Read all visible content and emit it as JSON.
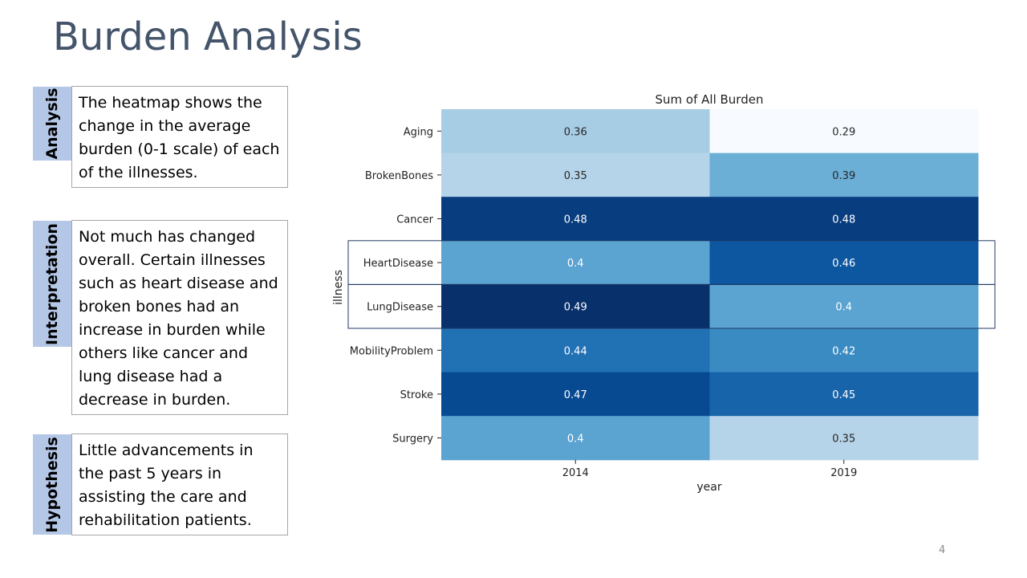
{
  "slide": {
    "title": "Burden Analysis",
    "page_number": "4"
  },
  "notes": [
    {
      "label": "Analysis",
      "text": "The heatmap shows the change in the average burden (0-1 scale) of each of the illnesses."
    },
    {
      "label": "Interpretation",
      "text": "Not much has changed overall. Certain illnesses such as heart disease and broken bones had an increase in burden while others like cancer and lung disease had a decrease in burden."
    },
    {
      "label": "Hypothesis",
      "text": "Little advancements in the past 5 years in assisting the care and rehabilitation patients."
    }
  ],
  "chart_data": {
    "type": "heatmap",
    "title": "Sum of All Burden",
    "xlabel": "year",
    "ylabel": "illness",
    "x": [
      "2014",
      "2019"
    ],
    "y": [
      "Aging",
      "BrokenBones",
      "Cancer",
      "HeartDisease",
      "LungDisease",
      "MobilityProblem",
      "Stroke",
      "Surgery"
    ],
    "values": [
      [
        "0.36",
        "0.29"
      ],
      [
        "0.35",
        "0.39"
      ],
      [
        "0.48",
        "0.48"
      ],
      [
        "0.4",
        "0.46"
      ],
      [
        "0.49",
        "0.4"
      ],
      [
        "0.44",
        "0.42"
      ],
      [
        "0.47",
        "0.45"
      ],
      [
        "0.4",
        "0.35"
      ]
    ],
    "colormap": "Blues",
    "highlighted_rows": [
      "HeartDisease",
      "LungDisease"
    ]
  }
}
